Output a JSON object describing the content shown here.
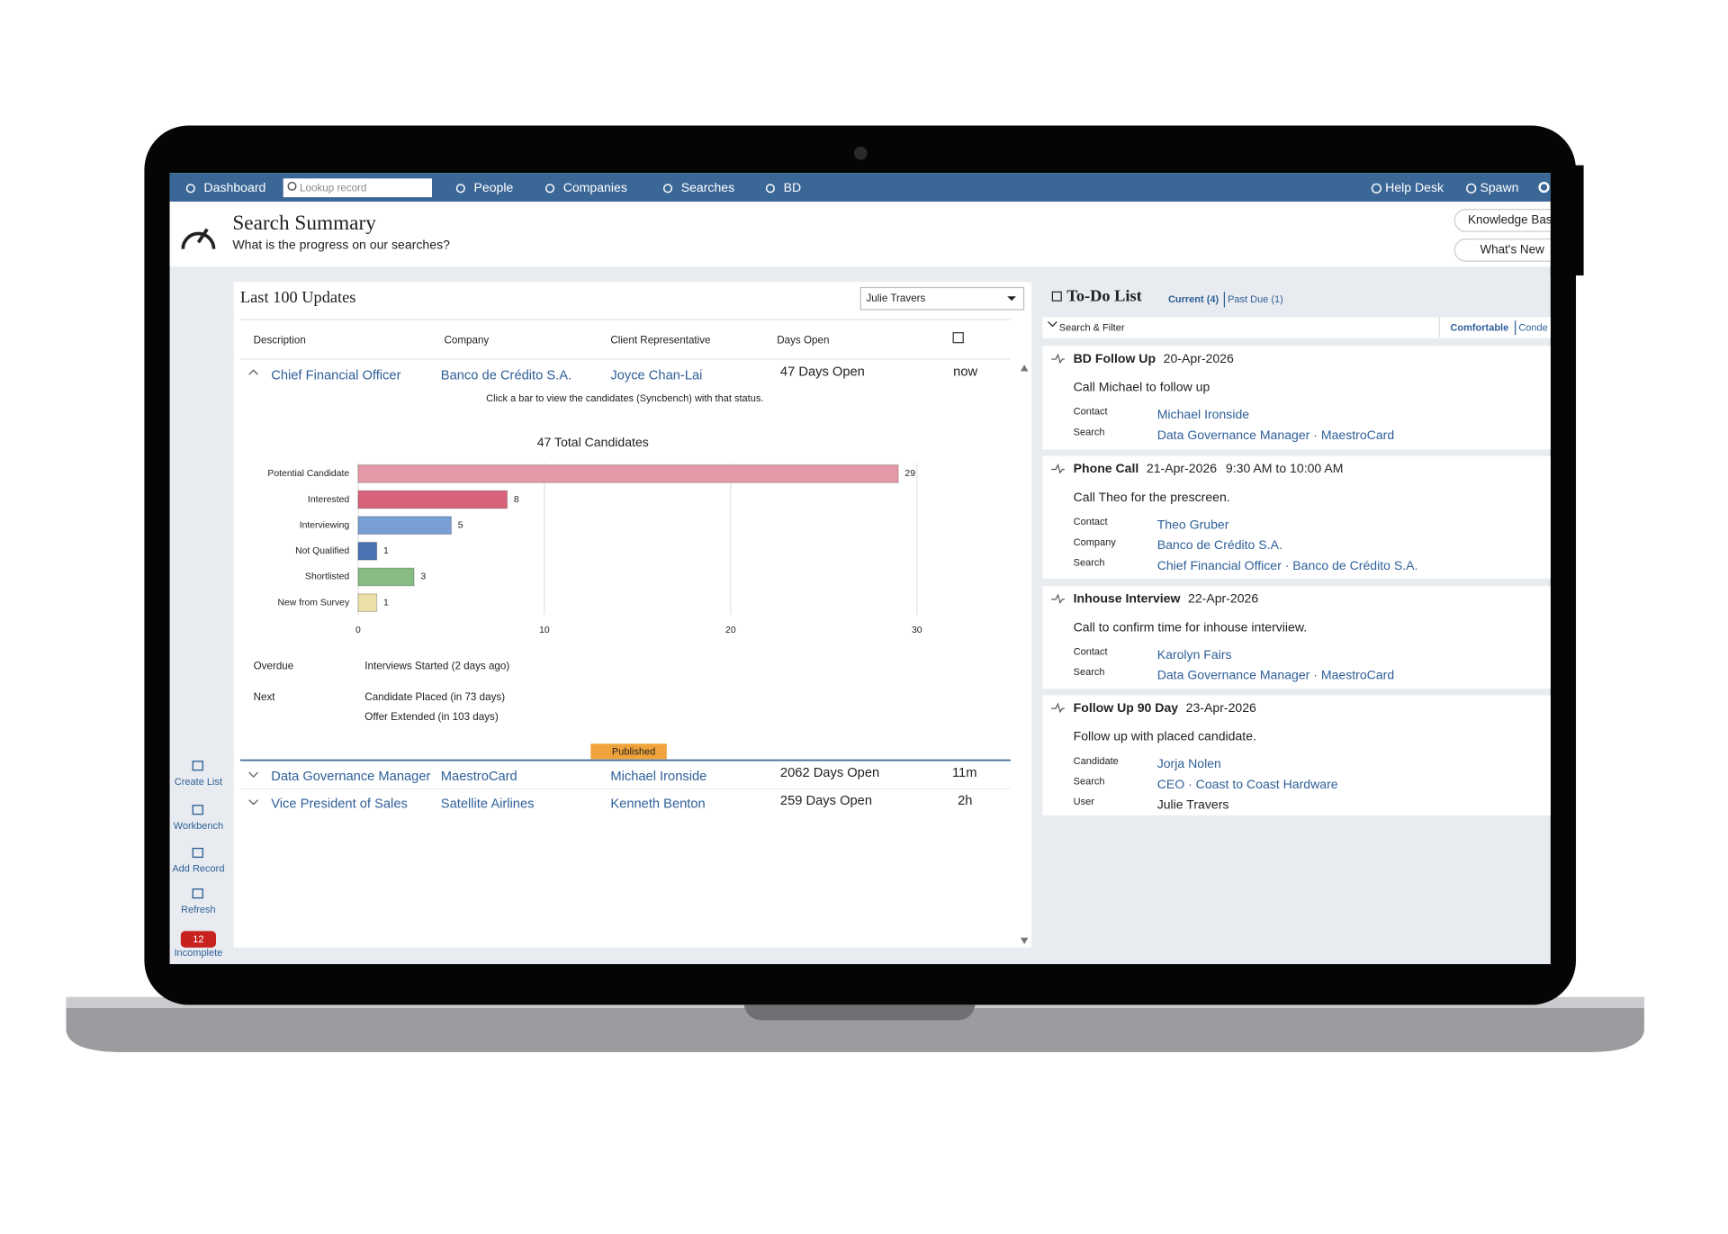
{
  "nav": {
    "items": [
      "Dashboard",
      "People",
      "Companies",
      "Searches",
      "BD"
    ],
    "search_placeholder": "Lookup record",
    "right": [
      "Help Desk",
      "Spawn"
    ]
  },
  "header": {
    "title": "Search Summary",
    "subtitle": "What is the progress on our searches?",
    "buttons": [
      "Knowledge Bas",
      "What's New"
    ]
  },
  "sidebar": {
    "items": [
      "Create List",
      "Workbench",
      "Add Record",
      "Refresh"
    ],
    "badge": "12",
    "badge_label": "Incomplete"
  },
  "updates": {
    "title": "Last 100 Updates",
    "filter": "Julie Travers",
    "columns": [
      "Description",
      "Company",
      "Client Representative",
      "Days Open"
    ],
    "rows": [
      {
        "description": "Chief Financial Officer",
        "company": "Banco de Crédito S.A.",
        "representative": "Joyce Chan-Lai",
        "days_open": "47 Days Open",
        "updated": "now"
      },
      {
        "description": "Data Governance Manager",
        "company": "MaestroCard",
        "representative": "Michael Ironside",
        "days_open": "2062 Days Open",
        "updated": "11m"
      },
      {
        "description": "Vice President of Sales",
        "company": "Satellite Airlines",
        "representative": "Kenneth Benton",
        "days_open": "259 Days Open",
        "updated": "2h"
      }
    ],
    "hint": "Click a bar to view the candidates (Syncbench) with that status.",
    "overdue_label": "Overdue",
    "overdue": [
      "Interviews Started (2 days ago)"
    ],
    "next_label": "Next",
    "next": [
      "Candidate Placed (in 73 days)",
      "Offer Extended (in 103 days)"
    ],
    "badge": "Published"
  },
  "chart_data": {
    "type": "bar",
    "orientation": "horizontal",
    "title": "47 Total Candidates",
    "categories": [
      "Potential Candidate",
      "Interested",
      "Interviewing",
      "Not Qualified",
      "Shortlisted",
      "New from Survey"
    ],
    "values": [
      29,
      8,
      5,
      1,
      3,
      1
    ],
    "colors": [
      "#e49aa6",
      "#d8627a",
      "#789fd3",
      "#4a73b3",
      "#86bc82",
      "#ece0a8"
    ],
    "xlim": [
      0,
      30
    ],
    "xticks": [
      0,
      10,
      20,
      30
    ],
    "grid": true
  },
  "todo": {
    "title": "To-Do List",
    "tabs": [
      "Current (4)",
      "Past Due (1)"
    ],
    "filter": "Search & Filter",
    "density": [
      "Comfortable",
      "Conde"
    ],
    "items": [
      {
        "type": "BD Follow Up",
        "date": "20-Apr-2026",
        "note": "Call Michael to follow up",
        "fields": [
          {
            "label": "Contact",
            "value": "Michael Ironside"
          },
          {
            "label": "Search",
            "value": "Data Governance Manager · MaestroCard"
          }
        ]
      },
      {
        "type": "Phone Call",
        "date": "21-Apr-2026",
        "time": "9:30 AM to 10:00 AM",
        "note": "Call Theo for the prescreen.",
        "fields": [
          {
            "label": "Contact",
            "value": "Theo Gruber"
          },
          {
            "label": "Company",
            "value": "Banco de Crédito S.A."
          },
          {
            "label": "Search",
            "value": "Chief Financial Officer · Banco de Crédito S.A."
          }
        ]
      },
      {
        "type": "Inhouse Interview",
        "date": "22-Apr-2026",
        "note": "Call to confirm time for inhouse interviiew.",
        "fields": [
          {
            "label": "Contact",
            "value": "Karolyn Fairs"
          },
          {
            "label": "Search",
            "value": "Data Governance Manager · MaestroCard"
          }
        ]
      },
      {
        "type": "Follow Up 90 Day",
        "date": "23-Apr-2026",
        "note": "Follow up with placed candidate.",
        "fields": [
          {
            "label": "Candidate",
            "value": "Jorja Nolen"
          },
          {
            "label": "Search",
            "value": "CEO · Coast to Coast Hardware"
          },
          {
            "label": "User",
            "value": "Julie Travers",
            "color": "#222222"
          }
        ]
      }
    ]
  }
}
